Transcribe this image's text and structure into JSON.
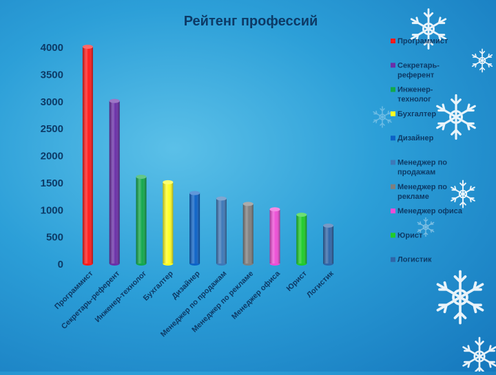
{
  "chart_data": {
    "type": "bar",
    "title": "Рейтенг профессий",
    "categories": [
      "Программист",
      "Секретарь-референт",
      "Инженер-технолог",
      "Бухгалтер",
      "Дизайнер",
      "Менеджер по продажам",
      "Менеджер по рекламе",
      "Менеджер офиса",
      "Юрист",
      "Логистик"
    ],
    "legend_labels": [
      [
        "Программист"
      ],
      [
        "Секретарь-",
        "референт"
      ],
      [
        "Инженер-",
        "технолог"
      ],
      [
        "Бухгалтер"
      ],
      [
        "Дизайнер"
      ],
      [
        "Менеджер по",
        "продажам"
      ],
      [
        "Менеджер по",
        "рекламе"
      ],
      [
        "Менеджер офиса"
      ],
      [
        "Юрист"
      ],
      [
        "Логистик"
      ]
    ],
    "values": [
      4000,
      3000,
      1600,
      1500,
      1300,
      1200,
      1100,
      1000,
      900,
      700
    ],
    "colors": [
      "#ff1a1a",
      "#6a2fa8",
      "#12a84c",
      "#ffff22",
      "#0c62c6",
      "#3d78b8",
      "#7f7f7f",
      "#ee4ed6",
      "#1fcc2a",
      "#2e65a8"
    ],
    "yticks": [
      0,
      500,
      1000,
      1500,
      2000,
      2500,
      3000,
      3500,
      4000
    ],
    "ylim": [
      0,
      4000
    ],
    "legend_position": "right",
    "grid": false
  }
}
